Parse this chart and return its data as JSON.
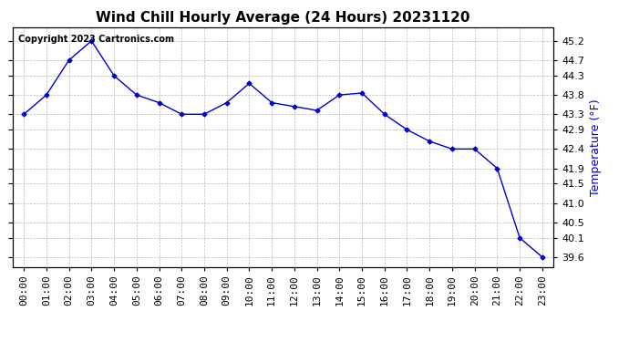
{
  "title": "Wind Chill Hourly Average (24 Hours) 20231120",
  "ylabel": "Temperature (°F)",
  "copyright": "Copyright 2023 Cartronics.com",
  "hours": [
    "00:00",
    "01:00",
    "02:00",
    "03:00",
    "04:00",
    "05:00",
    "06:00",
    "07:00",
    "08:00",
    "09:00",
    "10:00",
    "11:00",
    "12:00",
    "13:00",
    "14:00",
    "15:00",
    "16:00",
    "17:00",
    "18:00",
    "19:00",
    "20:00",
    "21:00",
    "22:00",
    "23:00"
  ],
  "values": [
    43.3,
    43.8,
    44.7,
    45.2,
    44.3,
    43.8,
    43.6,
    43.3,
    43.3,
    43.6,
    44.1,
    43.6,
    43.5,
    43.4,
    43.8,
    43.85,
    43.3,
    42.9,
    42.6,
    42.4,
    42.4,
    41.9,
    40.1,
    39.6
  ],
  "line_color": "#0000cc",
  "marker": "D",
  "marker_size": 2.5,
  "grid_color": "#bbbbbb",
  "bg_color": "#ffffff",
  "title_fontsize": 11,
  "label_fontsize": 9,
  "tick_fontsize": 8,
  "copyright_fontsize": 7,
  "ylim_min": 39.35,
  "ylim_max": 45.55,
  "yticks": [
    39.6,
    40.1,
    40.5,
    41.0,
    41.5,
    41.9,
    42.4,
    42.9,
    43.3,
    43.8,
    44.3,
    44.7,
    45.2
  ]
}
